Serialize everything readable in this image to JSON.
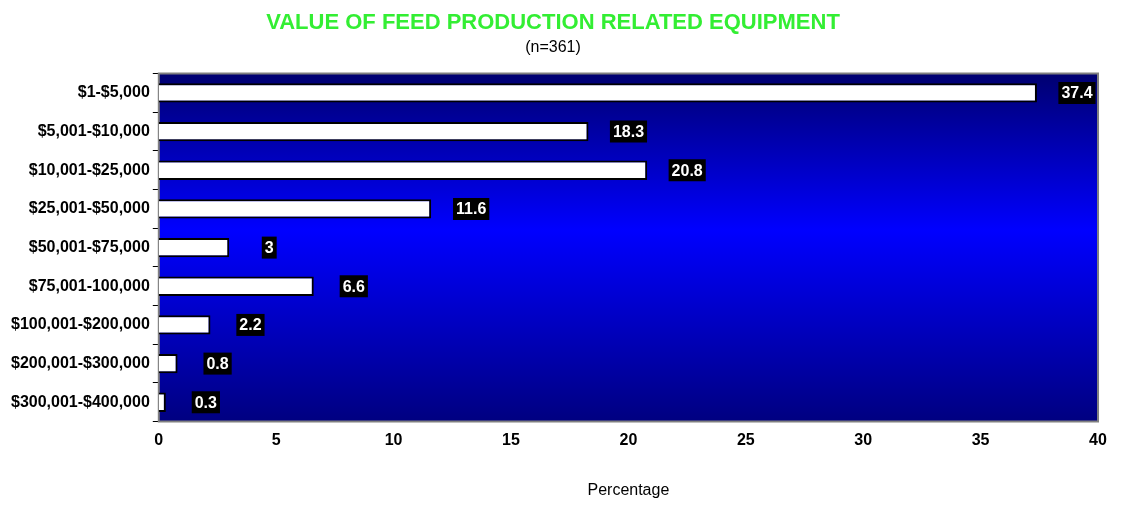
{
  "chart_data": {
    "type": "bar",
    "orientation": "horizontal",
    "title": "VALUE OF FEED PRODUCTION RELATED EQUIPMENT",
    "subtitle": "(n=361)",
    "xlabel": "Percentage",
    "categories": [
      "$1-$5,000",
      "$5,001-$10,000",
      "$10,001-$25,000",
      "$25,001-$50,000",
      "$50,001-$75,000",
      "$75,001-100,000",
      "$100,001-$200,000",
      "$200,001-$300,000",
      "$300,001-$400,000"
    ],
    "values": [
      37.4,
      18.3,
      20.8,
      11.6,
      3,
      6.6,
      2.2,
      0.8,
      0.3
    ],
    "color": "#ffffff",
    "xlim": [
      0,
      40
    ],
    "xticks": [
      0,
      5,
      10,
      15,
      20,
      25,
      30,
      35,
      40
    ],
    "grid": false,
    "legend": false,
    "data_labels": true
  }
}
